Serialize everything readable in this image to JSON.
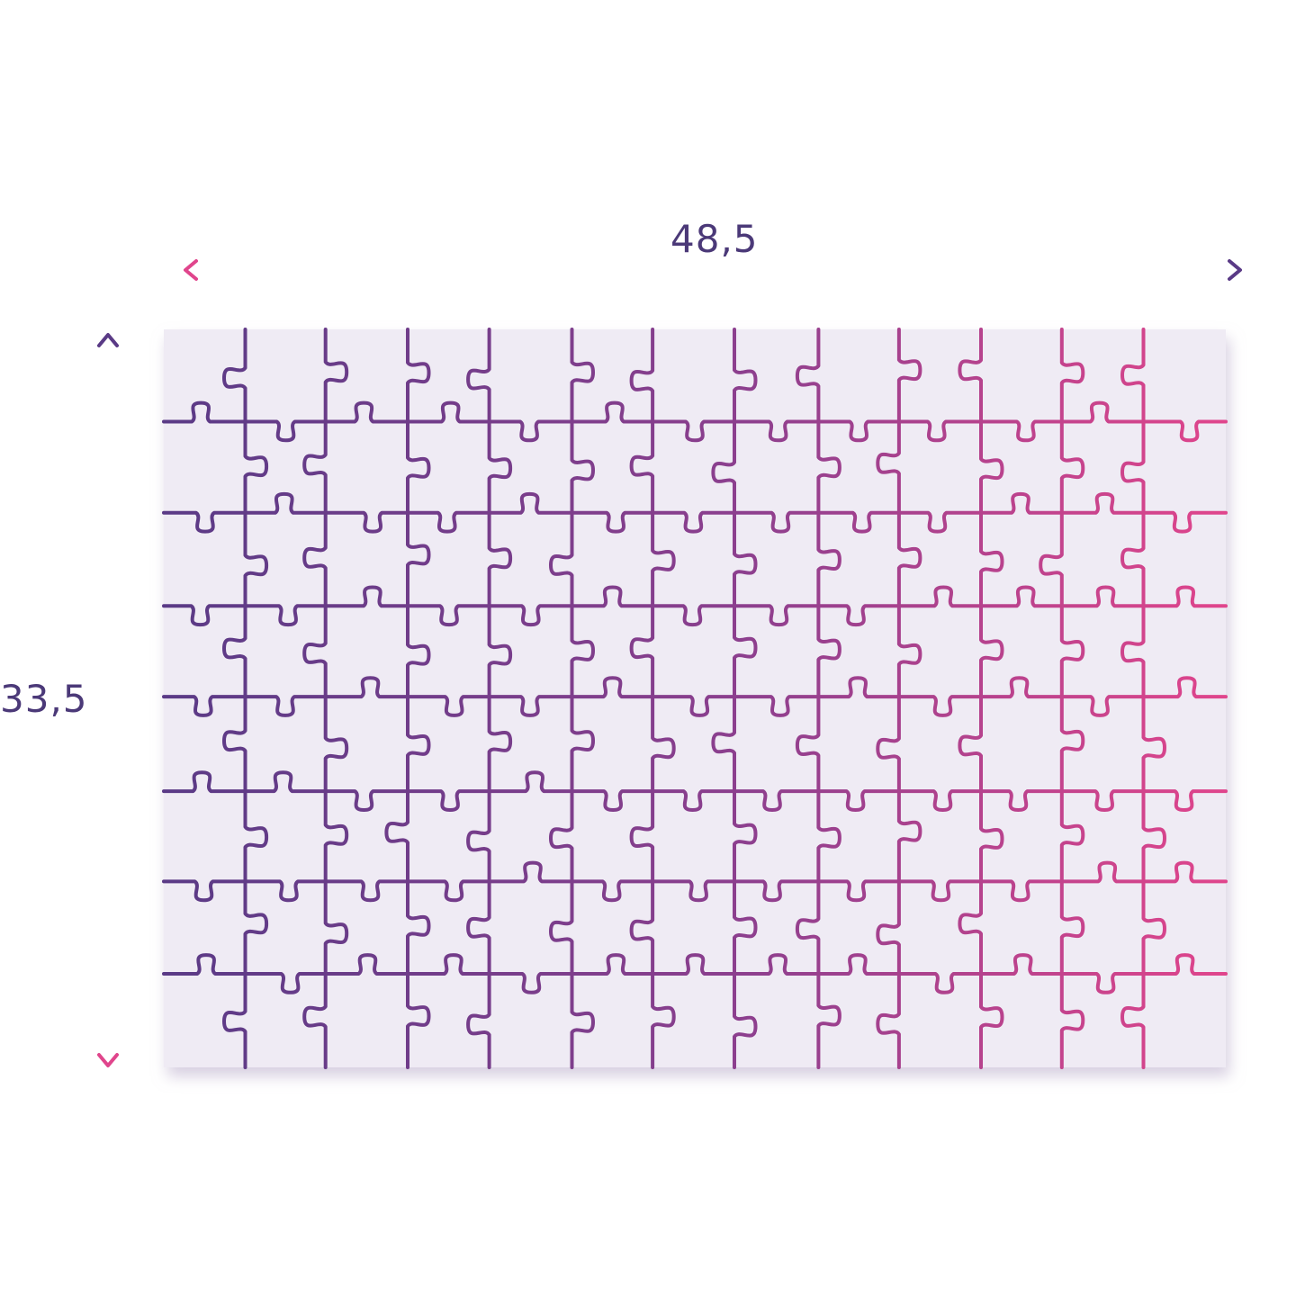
{
  "dimensions": {
    "width_label": "48,5",
    "height_label": "33,5"
  },
  "puzzle": {
    "columns": 13,
    "rows": 8
  },
  "colors": {
    "purple": "#5a3a86",
    "pink": "#e0458c",
    "board_fill": "#efebf4",
    "label": "#4b3978"
  }
}
